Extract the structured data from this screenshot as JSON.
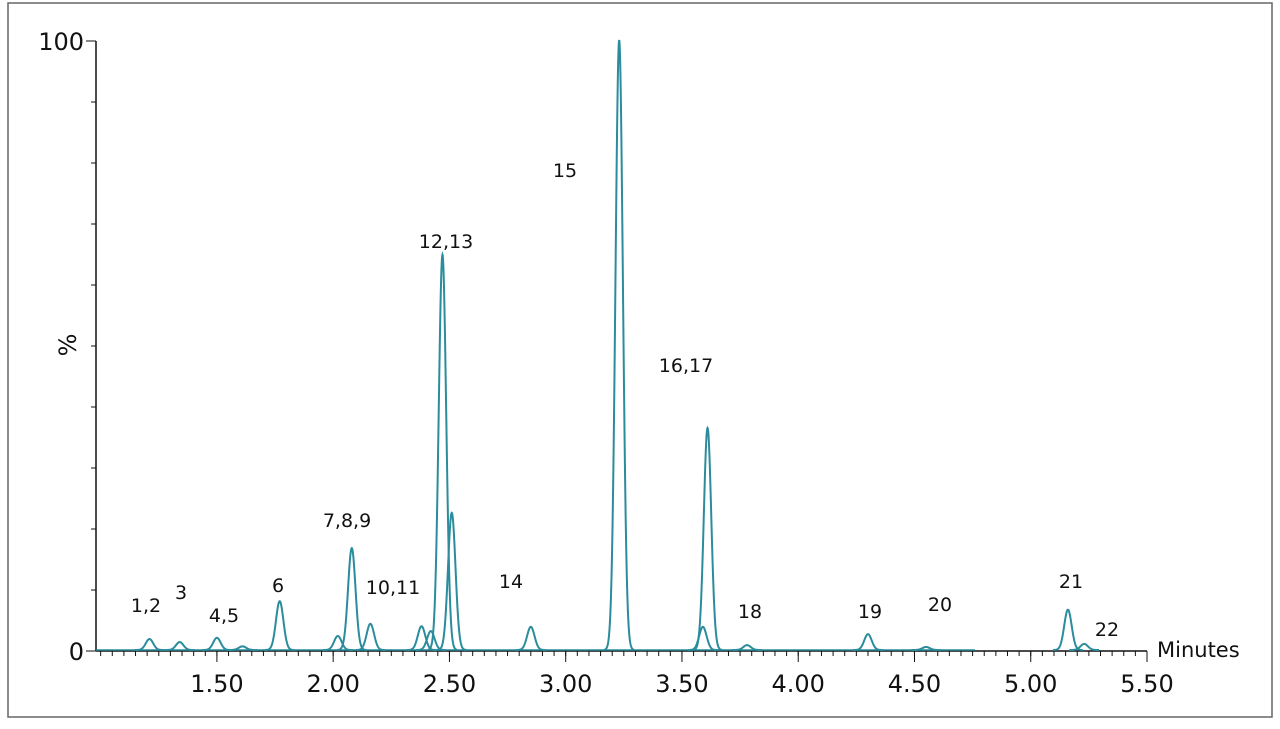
{
  "chart_data": {
    "type": "chromatogram",
    "x_label": "Minutes",
    "y_label": "%",
    "xlim": [
      0.98,
      5.5
    ],
    "xticks": [
      {
        "value": 1.5,
        "label": "1.50"
      },
      {
        "value": 2.0,
        "label": "2.00"
      },
      {
        "value": 2.5,
        "label": "2.50"
      },
      {
        "value": 3.0,
        "label": "3.00"
      },
      {
        "value": 3.5,
        "label": "3.50"
      },
      {
        "value": 4.0,
        "label": "4.00"
      },
      {
        "value": 4.5,
        "label": "4.50"
      },
      {
        "value": 5.0,
        "label": "5.00"
      },
      {
        "value": 5.5,
        "label": "5.50"
      }
    ],
    "ylim": [
      0,
      100
    ],
    "yticks": [
      0,
      100
    ],
    "color": "#2a8c9c",
    "peaks": {
      "x": [
        1.21,
        1.34,
        1.5,
        1.61,
        1.77,
        2.02,
        2.08,
        2.16,
        2.38,
        2.42,
        2.47,
        2.51,
        2.85,
        3.23,
        3.59,
        3.61,
        3.78,
        4.3,
        4.55,
        5.16,
        5.23
      ],
      "values": [
        1.8,
        1.3,
        2,
        0.6,
        8,
        2.3,
        16.7,
        4.3,
        3.9,
        3.1,
        64.8,
        22.5,
        3.8,
        100,
        3.8,
        36.4,
        0.8,
        2.6,
        0.5,
        6.6,
        1
      ]
    },
    "annotations": [
      "1,2",
      "3",
      "4,5",
      "6",
      "7,8,9",
      "10,11",
      "12,13",
      "14",
      "15",
      "16,17",
      "18",
      "19",
      "20",
      "21",
      "22"
    ]
  }
}
